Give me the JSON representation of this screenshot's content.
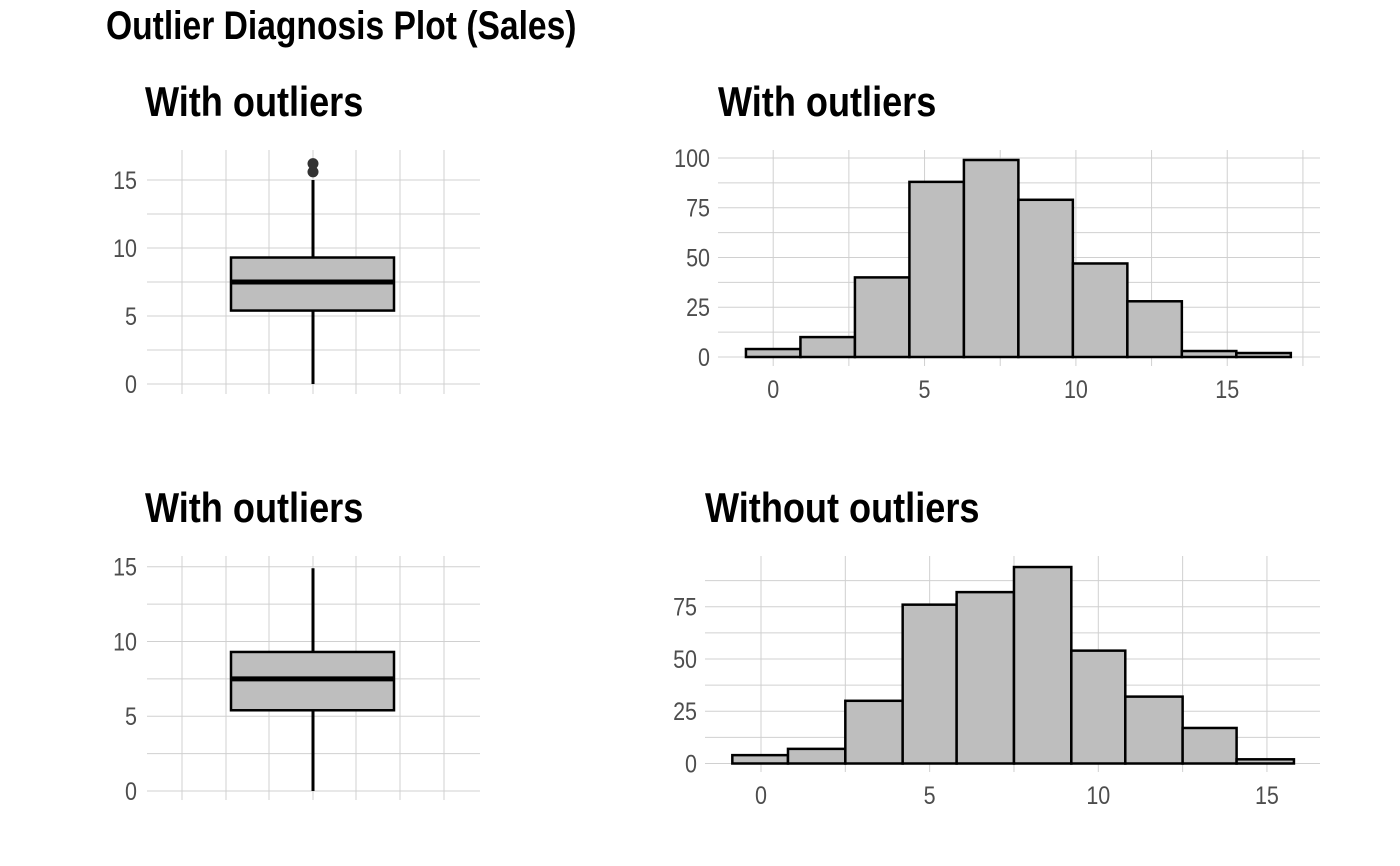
{
  "title": "Outlier Diagnosis Plot (Sales)",
  "chart_data": [
    {
      "type": "boxplot",
      "title": "With outliers",
      "ylim": [
        0,
        16.5
      ],
      "yticks": [
        0,
        5,
        10,
        15
      ],
      "box": {
        "min": 0,
        "q1": 5.4,
        "median": 7.5,
        "q3": 9.3,
        "max": 15.0
      },
      "outliers": [
        15.6,
        16.2
      ],
      "grid": true
    },
    {
      "type": "bar",
      "title": "With outliers",
      "xlim": [
        -1,
        17.2
      ],
      "ylim": [
        0,
        100
      ],
      "xticks": [
        0,
        5,
        10,
        15
      ],
      "yticks": [
        0,
        25,
        50,
        75,
        100
      ],
      "bins": [
        {
          "x0": -0.9,
          "x1": 0.9,
          "count": 4
        },
        {
          "x0": 0.9,
          "x1": 2.7,
          "count": 10
        },
        {
          "x0": 2.7,
          "x1": 4.5,
          "count": 40
        },
        {
          "x0": 4.5,
          "x1": 6.3,
          "count": 88
        },
        {
          "x0": 6.3,
          "x1": 8.1,
          "count": 99
        },
        {
          "x0": 8.1,
          "x1": 9.9,
          "count": 79
        },
        {
          "x0": 9.9,
          "x1": 11.7,
          "count": 47
        },
        {
          "x0": 11.7,
          "x1": 13.5,
          "count": 28
        },
        {
          "x0": 13.5,
          "x1": 15.3,
          "count": 3
        },
        {
          "x0": 15.3,
          "x1": 17.1,
          "count": 2
        }
      ],
      "grid": true
    },
    {
      "type": "boxplot",
      "title": "With outliers",
      "ylim": [
        0,
        15.2
      ],
      "yticks": [
        0,
        5,
        10,
        15
      ],
      "box": {
        "min": 0,
        "q1": 5.4,
        "median": 7.5,
        "q3": 9.3,
        "max": 14.9
      },
      "outliers": [],
      "grid": true
    },
    {
      "type": "bar",
      "title": "Without outliers",
      "xlim": [
        -1,
        15.8
      ],
      "ylim": [
        0,
        95
      ],
      "xticks": [
        0,
        5,
        10,
        15
      ],
      "yticks": [
        0,
        25,
        50,
        75
      ],
      "bins": [
        {
          "x0": -0.85,
          "x1": 0.8,
          "count": 4
        },
        {
          "x0": 0.8,
          "x1": 2.5,
          "count": 7
        },
        {
          "x0": 2.5,
          "x1": 4.2,
          "count": 30
        },
        {
          "x0": 4.2,
          "x1": 5.8,
          "count": 76
        },
        {
          "x0": 5.8,
          "x1": 7.5,
          "count": 82
        },
        {
          "x0": 7.5,
          "x1": 9.2,
          "count": 94
        },
        {
          "x0": 9.2,
          "x1": 10.8,
          "count": 54
        },
        {
          "x0": 10.8,
          "x1": 12.5,
          "count": 32
        },
        {
          "x0": 12.5,
          "x1": 14.1,
          "count": 17
        },
        {
          "x0": 14.1,
          "x1": 15.8,
          "count": 2
        }
      ],
      "grid": true
    }
  ]
}
